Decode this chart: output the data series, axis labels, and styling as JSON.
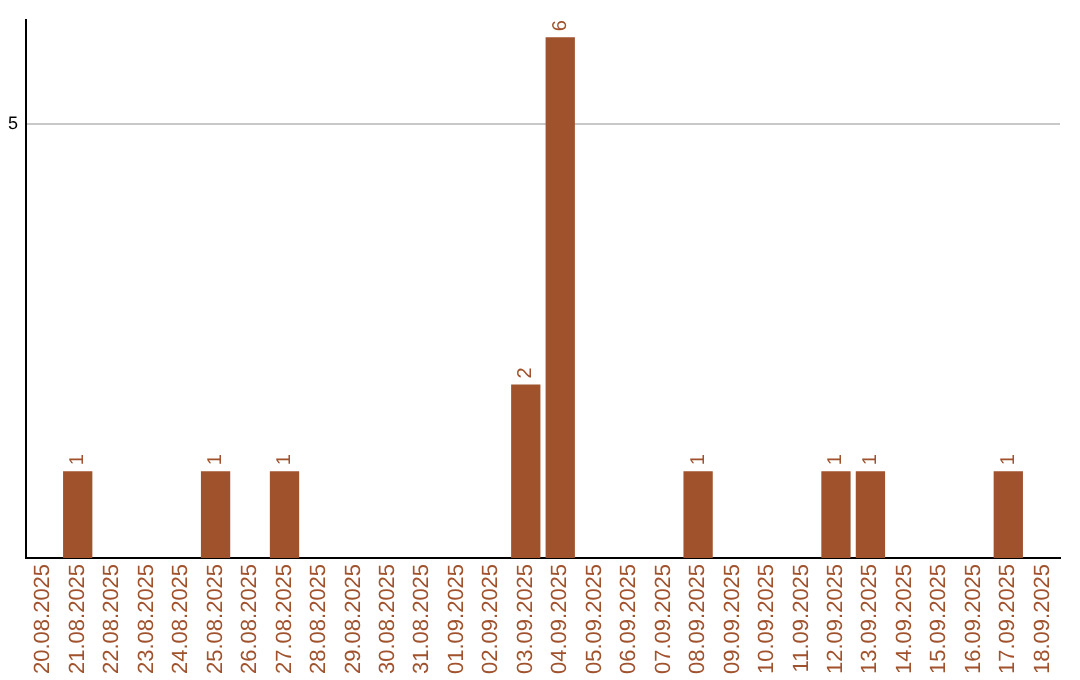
{
  "chart_data": {
    "type": "bar",
    "categories": [
      "20.08.2025",
      "21.08.2025",
      "22.08.2025",
      "23.08.2025",
      "24.08.2025",
      "25.08.2025",
      "26.08.2025",
      "27.08.2025",
      "28.08.2025",
      "29.08.2025",
      "30.08.2025",
      "31.08.2025",
      "01.09.2025",
      "02.09.2025",
      "03.09.2025",
      "04.09.2025",
      "05.09.2025",
      "06.09.2025",
      "07.09.2025",
      "08.09.2025",
      "09.09.2025",
      "10.09.2025",
      "11.09.2025",
      "12.09.2025",
      "13.09.2025",
      "14.09.2025",
      "15.09.2025",
      "16.09.2025",
      "17.09.2025",
      "18.09.2025"
    ],
    "values": [
      0,
      1,
      0,
      0,
      0,
      1,
      0,
      1,
      0,
      0,
      0,
      0,
      0,
      0,
      2,
      6,
      0,
      0,
      0,
      1,
      0,
      0,
      0,
      1,
      1,
      0,
      0,
      0,
      1,
      0
    ],
    "value_labels": [
      null,
      "1",
      null,
      null,
      null,
      "1",
      null,
      "1",
      null,
      null,
      null,
      null,
      null,
      null,
      "2",
      "6",
      null,
      null,
      null,
      "1",
      null,
      null,
      null,
      "1",
      "1",
      null,
      null,
      null,
      "1",
      null
    ],
    "color": "#a0522d",
    "ylim": [
      0,
      6.2
    ],
    "yticks": [
      5
    ],
    "grid": "y",
    "legend": false
  }
}
